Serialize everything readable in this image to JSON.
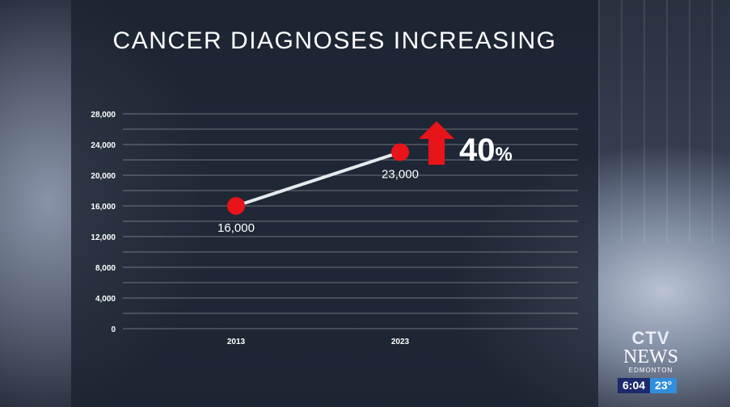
{
  "title": "CANCER DIAGNOSES INCREASING",
  "chart_data": {
    "type": "line",
    "title": "CANCER DIAGNOSES INCREASING",
    "categories": [
      "2013",
      "2023"
    ],
    "values": [
      16000,
      23000
    ],
    "data_labels": [
      "16,000",
      "23,000"
    ],
    "y_ticks": [
      "0",
      "4,000",
      "8,000",
      "12,000",
      "16,000",
      "20,000",
      "24,000",
      "28,000"
    ],
    "ylim": [
      0,
      28000
    ],
    "grid": true,
    "line_color": "#e6e9ee",
    "point_color": "#e8141a",
    "annotation": {
      "value": "40",
      "symbol": "%",
      "arrow": "up",
      "arrow_color": "#e8141a"
    }
  },
  "branding": {
    "logo_ctv": "CTV",
    "logo_news": "NEWS",
    "logo_city": "EDMONTON",
    "time": "6:04",
    "temperature": "23°"
  }
}
